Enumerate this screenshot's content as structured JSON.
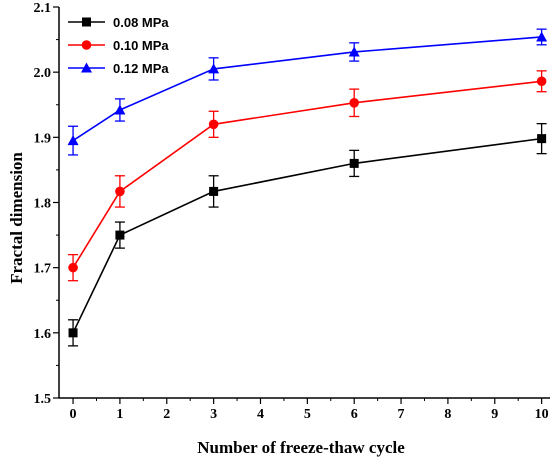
{
  "chart_data": {
    "type": "line",
    "title": "",
    "xlabel": "Number of freeze-thaw cycle",
    "ylabel": "Fractal dimension",
    "xlim": [
      -0.3,
      10.2
    ],
    "ylim": [
      1.5,
      2.1
    ],
    "x_ticks": [
      "0",
      "1",
      "2",
      "3",
      "4",
      "5",
      "6",
      "7",
      "8",
      "9",
      "10"
    ],
    "y_ticks": [
      "1.5",
      "1.6",
      "1.7",
      "1.8",
      "1.9",
      "2.0",
      "2.1"
    ],
    "grid": false,
    "legend_position": "top-left",
    "series": [
      {
        "name": "0.08 MPa",
        "color": "#000000",
        "marker": "square",
        "x": [
          0,
          1,
          3,
          6,
          10
        ],
        "y": [
          1.6,
          1.75,
          1.817,
          1.86,
          1.898
        ],
        "error": [
          0.02,
          0.02,
          0.024,
          0.02,
          0.023
        ]
      },
      {
        "name": "0.10 MPa",
        "color": "#ff0000",
        "marker": "circle",
        "x": [
          0,
          1,
          3,
          6,
          10
        ],
        "y": [
          1.7,
          1.817,
          1.92,
          1.953,
          1.986
        ],
        "error": [
          0.02,
          0.024,
          0.02,
          0.021,
          0.016
        ]
      },
      {
        "name": "0.12 MPa",
        "color": "#0000ff",
        "marker": "triangle",
        "x": [
          0,
          1,
          3,
          6,
          10
        ],
        "y": [
          1.895,
          1.942,
          2.005,
          2.031,
          2.054
        ],
        "error": [
          0.022,
          0.017,
          0.017,
          0.014,
          0.012
        ]
      }
    ]
  }
}
